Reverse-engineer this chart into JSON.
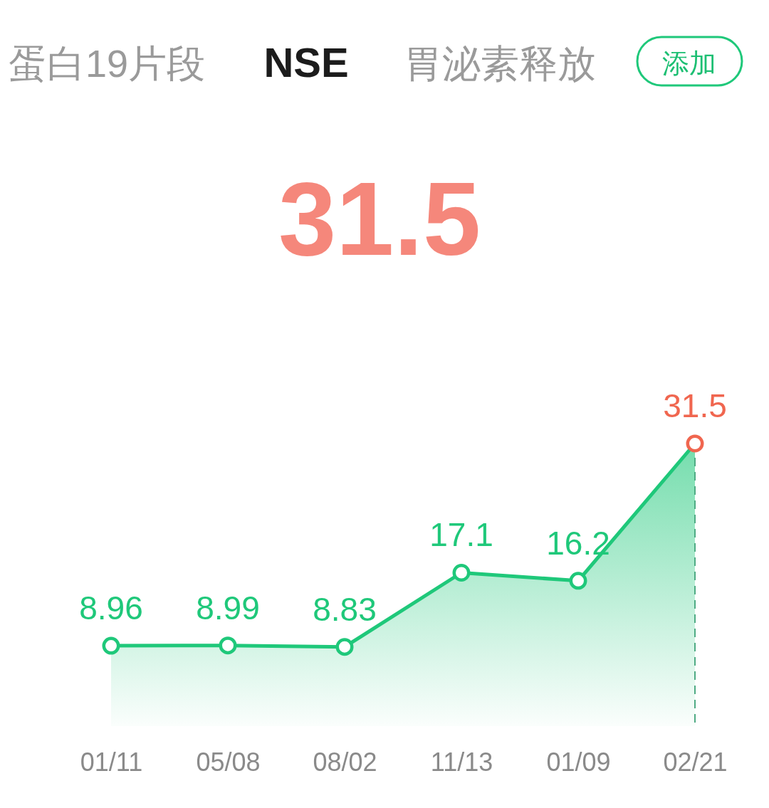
{
  "chart_data": {
    "type": "area",
    "title": "NSE",
    "subtitle": "31.5",
    "annotations": [
      "蛋白19片段",
      "胃泌素释放",
      "添加"
    ],
    "categories": [
      "01/11",
      "05/08",
      "08/02",
      "11/13",
      "01/09",
      "02/21"
    ],
    "series": [
      {
        "color": "#1fc87a",
        "colors": [
          "#1fc87a",
          "#1fc87a",
          "#1fc87a",
          "#1fc87a",
          "#1fc87a",
          "#f0664f"
        ],
        "values": [
          8.96,
          8.99,
          8.83,
          17.1,
          16.2,
          31.5
        ]
      }
    ],
    "data_labels": true,
    "marker": "circle",
    "line_style": "solid",
    "grid": false,
    "tick_labels": "x",
    "ref_lines": [
      {
        "axis": "x",
        "value": "02/21",
        "color": "#4fab84",
        "line_style": "dashed"
      }
    ]
  }
}
